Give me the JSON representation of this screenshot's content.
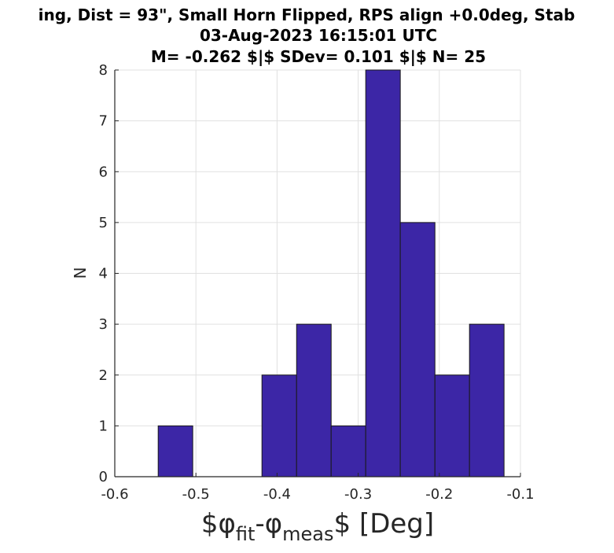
{
  "chart_data": {
    "type": "bar",
    "title_lines": [
      "ing, Dist = 93\", Small Horn Flipped, RPS align +0.0deg, Stab",
      "03-Aug-2023 16:15:01 UTC",
      "M= -0.262 $|$ SDev= 0.101 $|$ N= 25"
    ],
    "xlabel": {
      "prefix": "$φ",
      "sub1": "fit",
      "mid": "-φ",
      "sub2": "meas",
      "suffix": "$ [Deg]"
    },
    "ylabel": "N",
    "xlim": [
      -0.6,
      -0.1
    ],
    "ylim": [
      0,
      8
    ],
    "xticks": [
      -0.6,
      -0.5,
      -0.4,
      -0.3,
      -0.2,
      -0.1
    ],
    "xtick_labels": [
      "-0.6",
      "-0.5",
      "-0.4",
      "-0.3",
      "-0.2",
      "-0.1"
    ],
    "yticks": [
      0,
      1,
      2,
      3,
      4,
      5,
      6,
      7,
      8
    ],
    "ytick_labels": [
      "0",
      "1",
      "2",
      "3",
      "4",
      "5",
      "6",
      "7",
      "8"
    ],
    "grid": true,
    "bins": [
      {
        "x0": -0.5465,
        "x1": -0.5039,
        "count": 1
      },
      {
        "x0": -0.5039,
        "x1": -0.4612,
        "count": 0
      },
      {
        "x0": -0.4612,
        "x1": -0.4186,
        "count": 0
      },
      {
        "x0": -0.4186,
        "x1": -0.3759,
        "count": 2
      },
      {
        "x0": -0.3759,
        "x1": -0.3333,
        "count": 3
      },
      {
        "x0": -0.3333,
        "x1": -0.2907,
        "count": 1
      },
      {
        "x0": -0.2907,
        "x1": -0.2481,
        "count": 8
      },
      {
        "x0": -0.2481,
        "x1": -0.2054,
        "count": 5
      },
      {
        "x0": -0.2054,
        "x1": -0.1628,
        "count": 2
      },
      {
        "x0": -0.1628,
        "x1": -0.1202,
        "count": 3
      }
    ],
    "colors": {
      "bar_fill": "#3c26a6",
      "bar_edge": "#1a1a1a",
      "grid": "#e0e0e0",
      "axis": "#262626"
    }
  }
}
